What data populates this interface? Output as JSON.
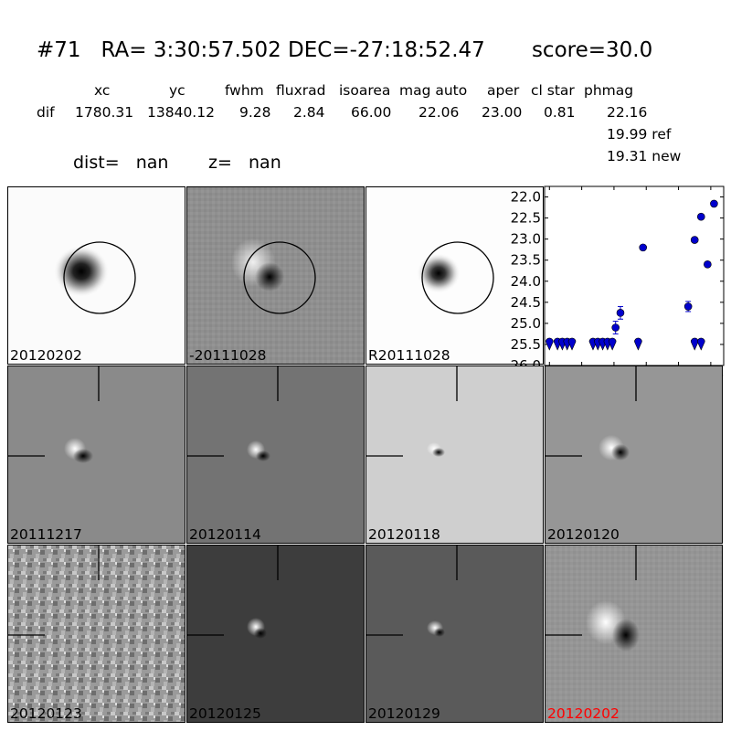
{
  "header": {
    "title": "#71   RA= 3:30:57.502 DEC=-27:18:52.47       score=30.0",
    "columns": [
      "xc",
      "yc",
      "fwhm",
      "fluxrad",
      "isoarea",
      "mag auto",
      "aper",
      "cl star",
      "phmag"
    ],
    "row_label": "dif",
    "row_values": [
      "1780.31",
      "13840.12",
      "9.28",
      "2.84",
      "66.00",
      "22.06",
      "23.00",
      "0.81",
      "22.16"
    ],
    "phmag_ref": "19.99 ref",
    "phmag_new": "19.31 new",
    "dist_text": "dist=   nan",
    "z_text": "z=   nan"
  },
  "tiles": [
    {
      "label": "20120202",
      "bg": "#fbfbfb",
      "label_color": "#000000"
    },
    {
      "label": "-20111028",
      "bg": "#8f8f8f",
      "label_color": "#000000"
    },
    {
      "label": "R20111028",
      "bg": "#fdfdfd",
      "label_color": "#000000"
    },
    {
      "label": "20111217",
      "bg": "#8a8a8a",
      "label_color": "#000000"
    },
    {
      "label": "20120114",
      "bg": "#737373",
      "label_color": "#000000"
    },
    {
      "label": "20120118",
      "bg": "#cfcfcf",
      "label_color": "#000000"
    },
    {
      "label": "20120120",
      "bg": "#969696",
      "label_color": "#000000"
    },
    {
      "label": "20120123",
      "bg": "#9a9a9a",
      "label_color": "#000000"
    },
    {
      "label": "20120125",
      "bg": "#3d3d3d",
      "label_color": "#000000"
    },
    {
      "label": "20120129",
      "bg": "#5a5a5a",
      "label_color": "#000000"
    },
    {
      "label": "20120202",
      "bg": "#9b9b9b",
      "label_color": "#ff0000"
    }
  ],
  "chart_data": {
    "type": "scatter",
    "title": "",
    "xlabel": "",
    "ylabel": "",
    "xlim": [
      -3,
      108
    ],
    "ylim": [
      26.0,
      21.75
    ],
    "y_inverted": true,
    "xticks": [
      0,
      20,
      40,
      60,
      80,
      100
    ],
    "yticks": [
      22.0,
      22.5,
      23.0,
      23.5,
      24.0,
      24.5,
      25.0,
      25.5,
      26.0
    ],
    "marker_color": "#0000cc",
    "detections": [
      {
        "x": 41,
        "y": 25.1,
        "err": 0.15
      },
      {
        "x": 44,
        "y": 24.75,
        "err": 0.15
      },
      {
        "x": 58,
        "y": 23.2,
        "err": 0.05
      },
      {
        "x": 86,
        "y": 24.6,
        "err": 0.12
      },
      {
        "x": 90,
        "y": 23.02,
        "err": 0.04
      },
      {
        "x": 94,
        "y": 22.47,
        "err": 0.03
      },
      {
        "x": 98,
        "y": 23.6,
        "err": 0.05
      },
      {
        "x": 102,
        "y": 22.16,
        "err": 0.03
      }
    ],
    "upper_limits": [
      {
        "x": 0,
        "y": 25.5
      },
      {
        "x": 5,
        "y": 25.5
      },
      {
        "x": 8,
        "y": 25.5
      },
      {
        "x": 11,
        "y": 25.5
      },
      {
        "x": 14,
        "y": 25.5
      },
      {
        "x": 27,
        "y": 25.5
      },
      {
        "x": 30,
        "y": 25.5
      },
      {
        "x": 33,
        "y": 25.5
      },
      {
        "x": 36,
        "y": 25.5
      },
      {
        "x": 39,
        "y": 25.5
      },
      {
        "x": 55,
        "y": 25.5
      },
      {
        "x": 90,
        "y": 25.5
      },
      {
        "x": 94,
        "y": 25.5
      }
    ]
  }
}
